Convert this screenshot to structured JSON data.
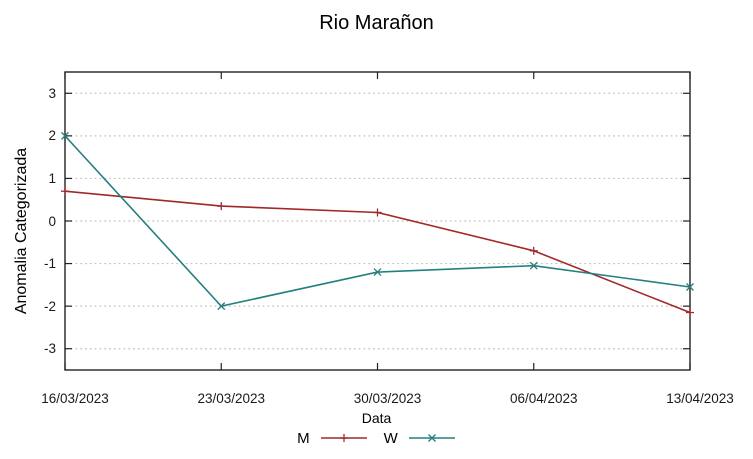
{
  "chart_data": {
    "type": "line",
    "title": "Rio Marañon",
    "xlabel": "Data",
    "ylabel": "Anomalia Categorizada",
    "categories": [
      "16/03/2023",
      "23/03/2023",
      "30/03/2023",
      "06/04/2023",
      "13/04/2023"
    ],
    "yticks": [
      "3",
      "2",
      "1",
      "0",
      "-1",
      "-2",
      "-3"
    ],
    "ylim": [
      -3.5,
      3.5
    ],
    "grid": "horizontal-dotted",
    "legend_position": "bottom-center",
    "series": [
      {
        "name": "M",
        "marker": "plus",
        "color": "#a02828",
        "values": [
          0.7,
          0.35,
          0.2,
          -0.7,
          -2.15
        ]
      },
      {
        "name": "W",
        "marker": "x",
        "color": "#257f7f",
        "values": [
          2.0,
          -2.0,
          -1.2,
          -1.05,
          -1.55
        ]
      }
    ]
  },
  "colors": {
    "background": "#ffffff",
    "grid": "#bdbdbd",
    "border": "#222222",
    "tick": "#222222"
  }
}
